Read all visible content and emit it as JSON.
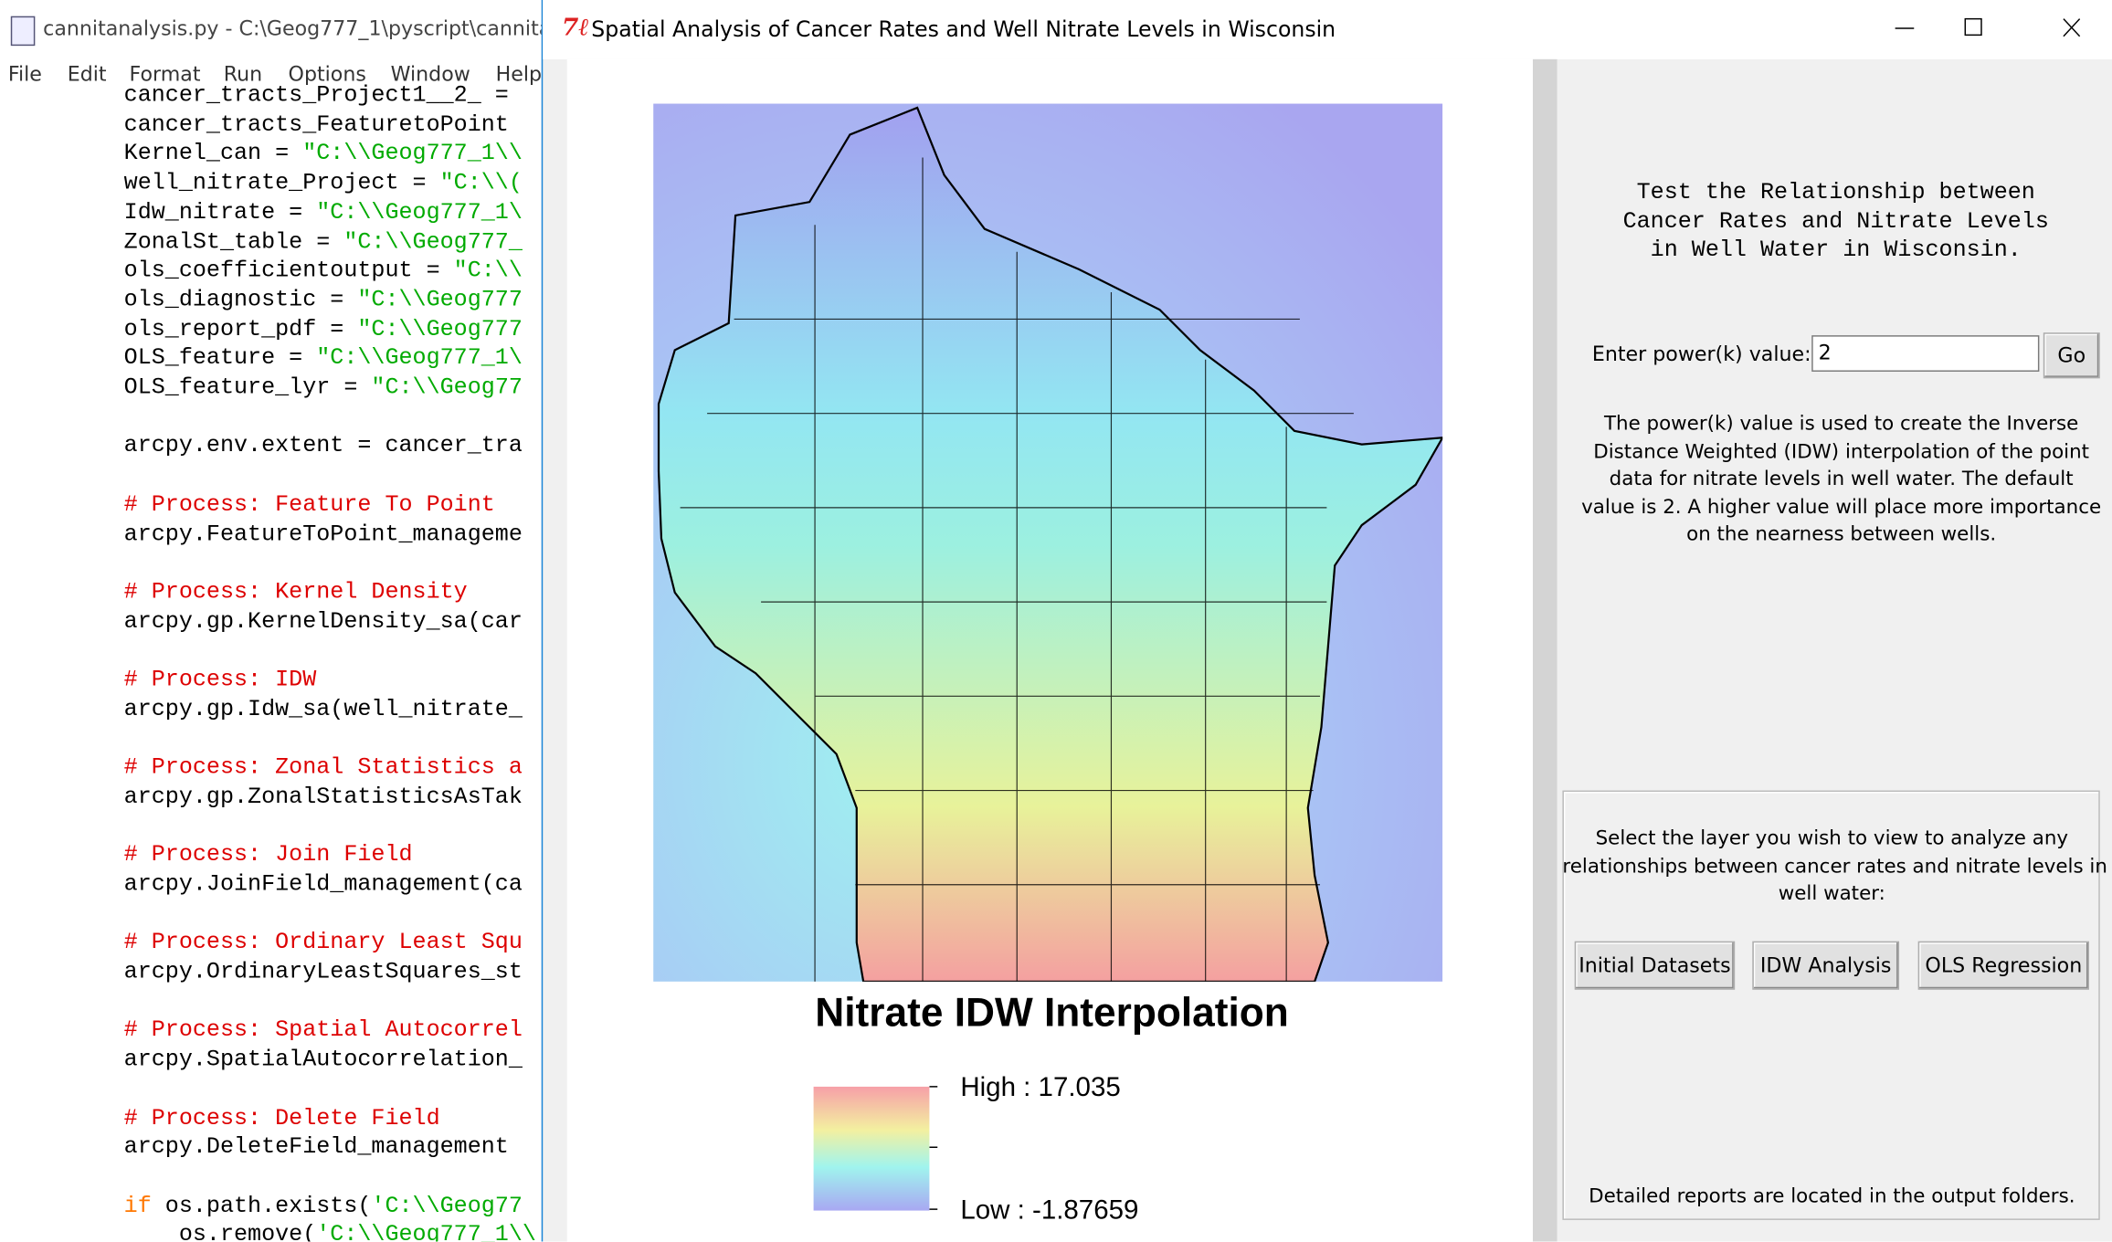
{
  "editor": {
    "title": "cannitanalysis.py - C:\\Geog777_1\\pyscript\\cannitan",
    "menu": [
      "File",
      "Edit",
      "Format",
      "Run",
      "Options",
      "Window",
      "Help"
    ],
    "code": [
      [
        {
          "style": "plain",
          "text": "cancer_tracts_Project1__2_ ="
        }
      ],
      [
        {
          "style": "plain",
          "text": "cancer_tracts_FeaturetoPoint"
        }
      ],
      [
        {
          "style": "plain",
          "text": "Kernel_can = "
        },
        {
          "style": "string",
          "text": "\"C:\\\\Geog777_1\\\\"
        }
      ],
      [
        {
          "style": "plain",
          "text": "well_nitrate_Project = "
        },
        {
          "style": "string",
          "text": "\"C:\\\\("
        }
      ],
      [
        {
          "style": "plain",
          "text": "Idw_nitrate = "
        },
        {
          "style": "string",
          "text": "\"C:\\\\Geog777_1\\"
        }
      ],
      [
        {
          "style": "plain",
          "text": "ZonalSt_table = "
        },
        {
          "style": "string",
          "text": "\"C:\\\\Geog777_"
        }
      ],
      [
        {
          "style": "plain",
          "text": "ols_coefficientoutput = "
        },
        {
          "style": "string",
          "text": "\"C:\\\\"
        }
      ],
      [
        {
          "style": "plain",
          "text": "ols_diagnostic = "
        },
        {
          "style": "string",
          "text": "\"C:\\\\Geog777"
        }
      ],
      [
        {
          "style": "plain",
          "text": "ols_report_pdf = "
        },
        {
          "style": "string",
          "text": "\"C:\\\\Geog777"
        }
      ],
      [
        {
          "style": "plain",
          "text": "OLS_feature = "
        },
        {
          "style": "string",
          "text": "\"C:\\\\Geog777_1\\"
        }
      ],
      [
        {
          "style": "plain",
          "text": "OLS_feature_lyr = "
        },
        {
          "style": "string",
          "text": "\"C:\\\\Geog77"
        }
      ],
      [],
      [
        {
          "style": "plain",
          "text": "arcpy.env.extent = cancer_tra"
        }
      ],
      [],
      [
        {
          "style": "comment",
          "text": "# Process: Feature To Point"
        }
      ],
      [
        {
          "style": "plain",
          "text": "arcpy.FeatureToPoint_manageme"
        }
      ],
      [],
      [
        {
          "style": "comment",
          "text": "# Process: Kernel Density"
        }
      ],
      [
        {
          "style": "plain",
          "text": "arcpy.gp.KernelDensity_sa(car"
        }
      ],
      [],
      [
        {
          "style": "comment",
          "text": "# Process: IDW"
        }
      ],
      [
        {
          "style": "plain",
          "text": "arcpy.gp.Idw_sa(well_nitrate_"
        }
      ],
      [],
      [
        {
          "style": "comment",
          "text": "# Process: Zonal Statistics a"
        }
      ],
      [
        {
          "style": "plain",
          "text": "arcpy.gp.ZonalStatisticsAsTak"
        }
      ],
      [],
      [
        {
          "style": "comment",
          "text": "# Process: Join Field"
        }
      ],
      [
        {
          "style": "plain",
          "text": "arcpy.JoinField_management(ca"
        }
      ],
      [],
      [
        {
          "style": "comment",
          "text": "# Process: Ordinary Least Squ"
        }
      ],
      [
        {
          "style": "plain",
          "text": "arcpy.OrdinaryLeastSquares_st"
        }
      ],
      [],
      [
        {
          "style": "comment",
          "text": "# Process: Spatial Autocorrel"
        }
      ],
      [
        {
          "style": "plain",
          "text": "arcpy.SpatialAutocorrelation_"
        }
      ],
      [],
      [
        {
          "style": "comment",
          "text": "# Process: Delete Field"
        }
      ],
      [
        {
          "style": "plain",
          "text": "arcpy.DeleteField_management"
        }
      ],
      [],
      [
        {
          "style": "keyword",
          "text": "if"
        },
        {
          "style": "plain",
          "text": " os.path.exists("
        },
        {
          "style": "string",
          "text": "'C:\\\\Geog77"
        }
      ],
      [
        {
          "style": "plain",
          "text": "    os.remove("
        },
        {
          "style": "string",
          "text": "'C:\\\\Geog777_1\\\\"
        }
      ]
    ]
  },
  "window": {
    "title": "Spatial Analysis of Cancer Rates and Well Nitrate Levels in Wisconsin"
  },
  "map": {
    "title": "Nitrate IDW Interpolation",
    "legend_high": "High : 17.035",
    "legend_low": "Low : -1.87659"
  },
  "panel": {
    "heading": [
      "Test the Relationship between",
      "Cancer Rates and Nitrate Levels",
      "in Well Water in Wisconsin."
    ],
    "power_label": "Enter power(k) value:",
    "power_input": "2",
    "go_button": "Go",
    "description": [
      "The power(k) value is used to create the Inverse",
      "Distance Weighted (IDW) interpolation of the point",
      "data for nitrate levels in well water. The default",
      "value is 2. A higher value will place more importance",
      "on the nearness between wells."
    ],
    "select_text": [
      "Select the layer you wish to view to analyze any",
      "relationships between cancer rates and nitrate levels in",
      "well water:"
    ],
    "buttons": [
      "Initial Datasets",
      "IDW Analysis",
      "OLS Regression"
    ],
    "footer": "Detailed reports are located in the output folders."
  }
}
